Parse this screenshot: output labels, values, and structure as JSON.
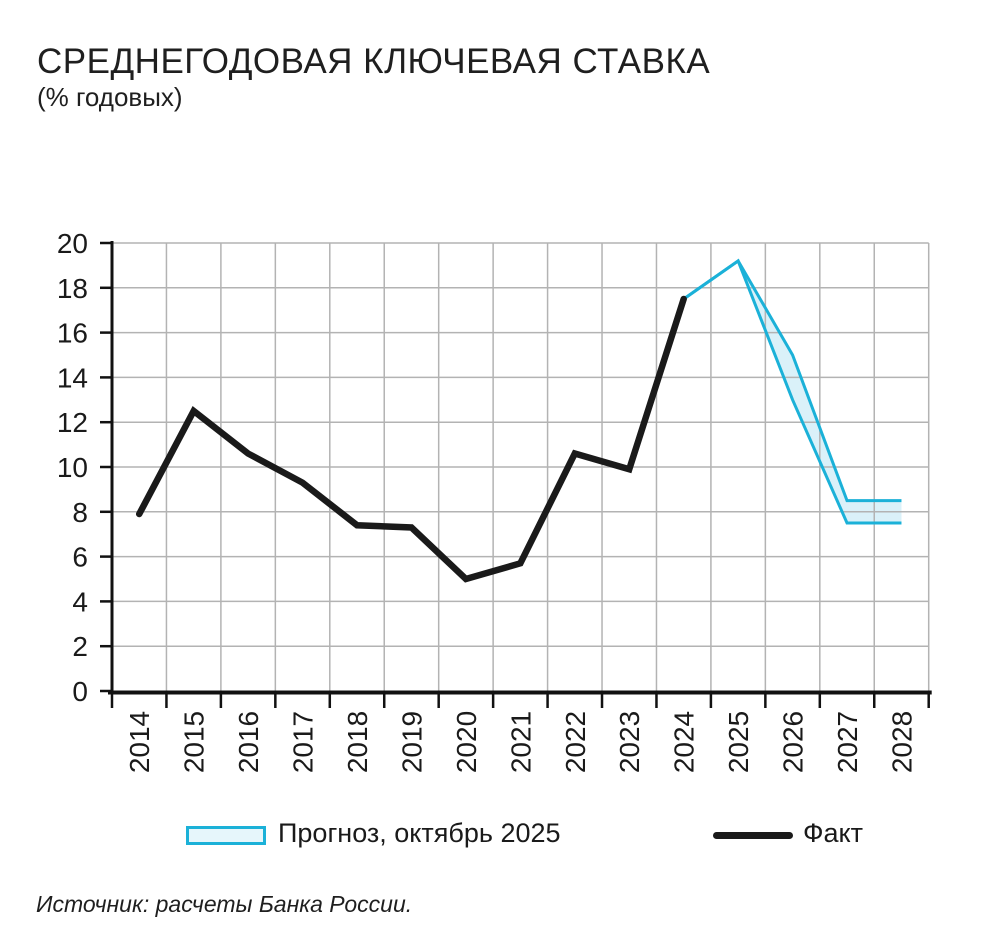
{
  "title": "СРЕДНЕГОДОВАЯ КЛЮЧЕВАЯ СТАВКА",
  "subtitle": "(% годовых)",
  "source": "Источник: расчеты Банка России.",
  "legend": {
    "forecast_label": "Прогноз, октябрь 2025",
    "fact_label": "Факт"
  },
  "colors": {
    "fact_line": "#1a1a1a",
    "forecast_line": "#1bb1d8",
    "forecast_fill": "#daf1f9",
    "grid": "#b3b3b3",
    "axis": "#111111",
    "text": "#1a1a1a"
  },
  "chart_data": {
    "type": "line",
    "title": "Среднегодовая ключевая ставка (% годовых)",
    "xlabel": "",
    "ylabel": "% годовых",
    "x": [
      2014,
      2015,
      2016,
      2017,
      2018,
      2019,
      2020,
      2021,
      2022,
      2023,
      2024,
      2025,
      2026,
      2027,
      2028
    ],
    "ylim": [
      0,
      20
    ],
    "y_tick_step": 2,
    "grid": true,
    "legend_position": "bottom",
    "series": [
      {
        "name": "Факт",
        "role": "fact",
        "x": [
          2014,
          2015,
          2016,
          2017,
          2018,
          2019,
          2020,
          2021,
          2022,
          2023,
          2024
        ],
        "values": [
          7.9,
          12.5,
          10.6,
          9.3,
          7.4,
          7.3,
          5.0,
          5.7,
          10.6,
          9.9,
          17.5
        ]
      },
      {
        "name": "Прогноз, октябрь 2025 — верхняя граница",
        "role": "forecast-upper",
        "x": [
          2024,
          2025,
          2026,
          2027,
          2028
        ],
        "values": [
          17.5,
          19.2,
          15.0,
          8.5,
          8.5
        ]
      },
      {
        "name": "Прогноз, октябрь 2025 — нижняя граница",
        "role": "forecast-lower",
        "x": [
          2024,
          2025,
          2026,
          2027,
          2028
        ],
        "values": [
          17.5,
          19.2,
          13.0,
          7.5,
          7.5
        ]
      }
    ]
  }
}
